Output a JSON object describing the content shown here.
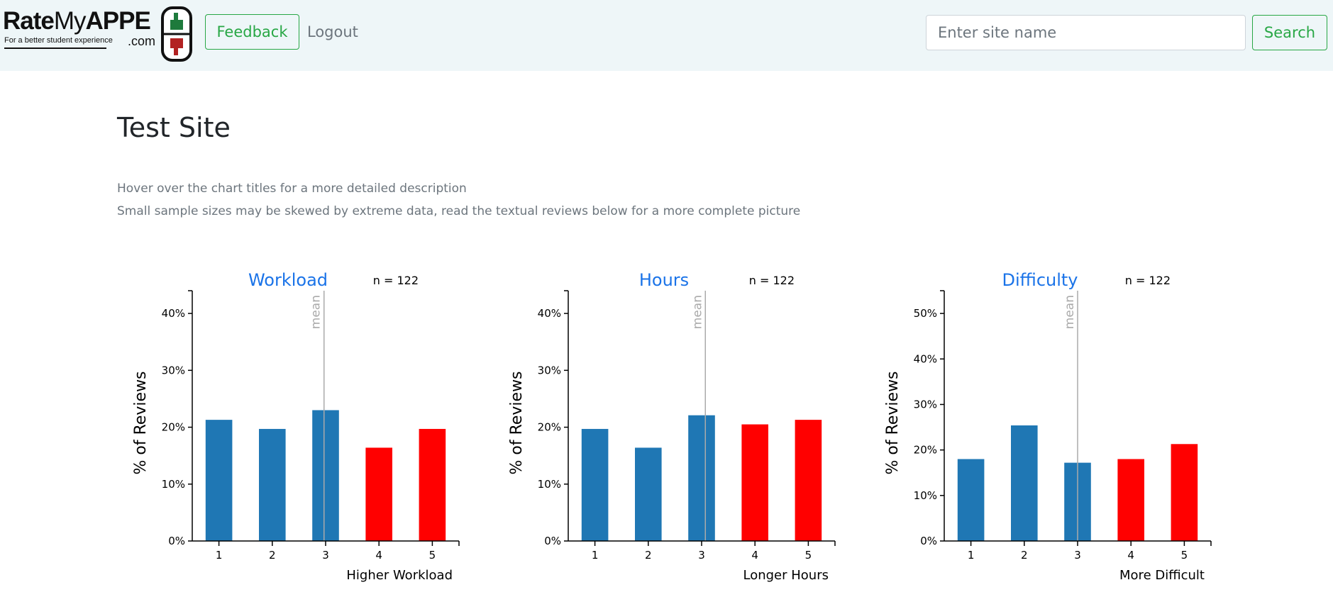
{
  "navbar": {
    "logo": {
      "rate": "Rate",
      "my": "My",
      "appe": "APPE",
      "tagline": "For a better student experience",
      "dotcom": ".com"
    },
    "feedback_label": "Feedback",
    "logout_label": "Logout",
    "search_placeholder": "Enter site name",
    "search_label": "Search"
  },
  "page": {
    "title": "Test Site",
    "note1": "Hover over the chart titles for a more detailed description",
    "note2": "Small sample sizes may be skewed by extreme data, read the textual reviews below for a more complete picture"
  },
  "colors": {
    "blue_bar": "#1f77b4",
    "red_bar": "#ff0000",
    "title_blue": "#1a73e8",
    "accent_green": "#28a745",
    "mean_line": "#aaaaaa"
  },
  "chart_data": [
    {
      "type": "bar",
      "title": "Workload",
      "n_label": "n = 122",
      "categories": [
        "1",
        "2",
        "3",
        "4",
        "5"
      ],
      "values": [
        21.3,
        19.7,
        23.0,
        16.4,
        19.7
      ],
      "bar_colors": [
        "blue",
        "blue",
        "blue",
        "red",
        "red"
      ],
      "mean": 2.97,
      "mean_label": "mean",
      "xlabel": "Higher Workload",
      "ylabel": "% of Reviews",
      "ylim": [
        0,
        44
      ],
      "yticks": [
        0,
        10,
        20,
        30,
        40
      ],
      "ytick_labels": [
        "0%",
        "10%",
        "20%",
        "30%",
        "40%"
      ]
    },
    {
      "type": "bar",
      "title": "Hours",
      "n_label": "n = 122",
      "categories": [
        "1",
        "2",
        "3",
        "4",
        "5"
      ],
      "values": [
        19.7,
        16.4,
        22.1,
        20.5,
        21.3
      ],
      "bar_colors": [
        "blue",
        "blue",
        "blue",
        "red",
        "red"
      ],
      "mean": 3.07,
      "mean_label": "mean",
      "xlabel": "Longer Hours",
      "ylabel": "% of Reviews",
      "ylim": [
        0,
        44
      ],
      "yticks": [
        0,
        10,
        20,
        30,
        40
      ],
      "ytick_labels": [
        "0%",
        "10%",
        "20%",
        "30%",
        "40%"
      ]
    },
    {
      "type": "bar",
      "title": "Difficulty",
      "n_label": "n = 122",
      "categories": [
        "1",
        "2",
        "3",
        "4",
        "5"
      ],
      "values": [
        18.0,
        25.4,
        17.2,
        18.0,
        21.3
      ],
      "bar_colors": [
        "blue",
        "blue",
        "blue",
        "red",
        "red"
      ],
      "mean": 3.0,
      "mean_label": "mean",
      "xlabel": "More Difficult",
      "ylabel": "% of Reviews",
      "ylim": [
        0,
        55
      ],
      "yticks": [
        0,
        10,
        20,
        30,
        40,
        50
      ],
      "ytick_labels": [
        "0%",
        "10%",
        "20%",
        "30%",
        "40%",
        "50%"
      ]
    }
  ]
}
